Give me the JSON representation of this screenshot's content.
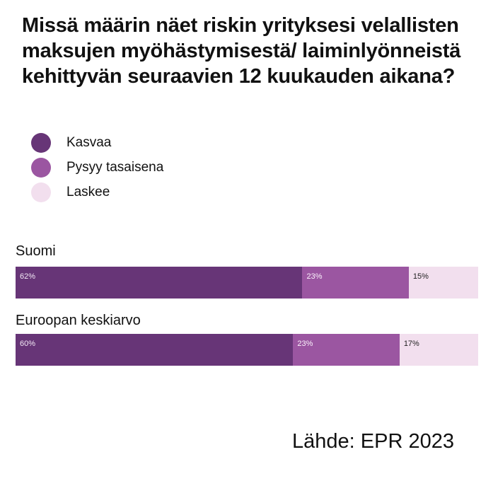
{
  "chart_data": {
    "type": "bar",
    "orientation": "horizontal",
    "stacked": true,
    "title": "Missä määrin näet riskin yrityksesi velallisten maksujen myöhästymisestä/ laiminlyönneistä kehittyvän seuraavien 12 kuukauden aikana?",
    "categories": [
      "Suomi",
      "Euroopan keskiarvo"
    ],
    "series": [
      {
        "name": "Kasvaa",
        "values": [
          62,
          60
        ],
        "labels": [
          "62%",
          "60%"
        ],
        "color": "#673577",
        "label_color": "#f3e9f6"
      },
      {
        "name": "Pysyy tasaisena",
        "values": [
          23,
          23
        ],
        "labels": [
          "23%",
          "23%"
        ],
        "color": "#9b56a1",
        "label_color": "#fbf2fc"
      },
      {
        "name": "Laskee",
        "values": [
          15,
          17
        ],
        "labels": [
          "15%",
          "17%"
        ],
        "color": "#f2dfee",
        "label_color": "#222222"
      }
    ],
    "legend": "top-left",
    "grid": false,
    "source": "Lähde: EPR 2023"
  }
}
